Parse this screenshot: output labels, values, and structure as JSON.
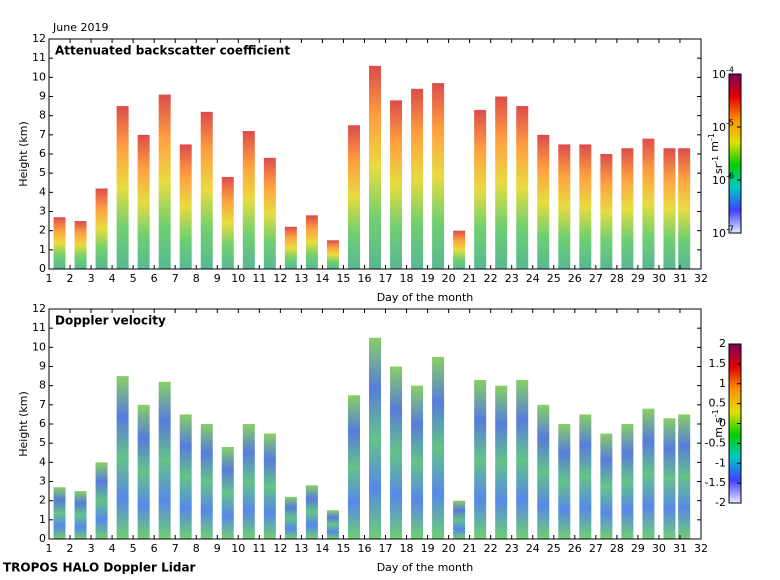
{
  "header": {
    "date": "June 2019",
    "footer": "TROPOS HALO Doppler Lidar"
  },
  "chart_data": [
    {
      "type": "bar",
      "title": "Attenuated backscatter coefficient",
      "ylabel": "Height (km)",
      "xlabel": "Day of the month",
      "x": [
        1.5,
        2.5,
        3.5,
        4.5,
        5.5,
        6.5,
        7.5,
        8.5,
        9.5,
        10.5,
        11.5,
        12.5,
        13.5,
        14.5,
        15.5,
        16.5,
        17.5,
        18.5,
        19.5,
        20.5,
        21.5,
        22.5,
        23.5,
        24.5,
        25.5,
        26.5,
        27.5,
        28.5,
        29.5,
        30.5,
        31.2
      ],
      "values": [
        2.7,
        2.5,
        4.2,
        8.5,
        7.0,
        9.1,
        6.5,
        8.2,
        4.8,
        7.2,
        5.8,
        2.2,
        2.8,
        1.5,
        7.5,
        10.6,
        8.8,
        9.4,
        9.7,
        2.0,
        8.3,
        9.0,
        8.5,
        7.0,
        6.5,
        6.5,
        6.0,
        6.3,
        6.8,
        6.3,
        6.3
      ],
      "xlim": [
        1,
        32
      ],
      "xticks": [
        1,
        2,
        3,
        4,
        5,
        6,
        7,
        8,
        9,
        10,
        11,
        12,
        13,
        14,
        15,
        16,
        17,
        18,
        19,
        20,
        21,
        22,
        23,
        24,
        25,
        26,
        27,
        28,
        29,
        30,
        31,
        32
      ],
      "ylim": [
        0,
        12
      ],
      "yticks": [
        0,
        1,
        2,
        3,
        4,
        5,
        6,
        7,
        8,
        9,
        10,
        11,
        12
      ],
      "colormap": [
        "#e8e8ff",
        "#4040ff",
        "#00c8c8",
        "#00d000",
        "#e0e000",
        "#ff9000",
        "#e00000",
        "#800060"
      ],
      "profile_colors": [
        "#20a070",
        "#40c040",
        "#e0d000",
        "#ff8000",
        "#d01010"
      ],
      "colorbar": {
        "scale": "log",
        "lim": [
          1e-07,
          0.0001
        ],
        "ticks": [
          {
            "value": 1e-07,
            "label": "10",
            "exponent": "-7"
          },
          {
            "value": 1e-06,
            "label": "10",
            "exponent": "-6"
          },
          {
            "value": 1e-05,
            "label": "10",
            "exponent": "-5"
          },
          {
            "value": 0.0001,
            "label": "10",
            "exponent": "-4"
          }
        ],
        "units": [
          {
            "base": "sr",
            "exponent": "-1"
          },
          {
            "base": "m",
            "exponent": "-1"
          }
        ]
      }
    },
    {
      "type": "bar",
      "title": "Doppler velocity",
      "ylabel": "Height (km)",
      "xlabel": "Day of the month",
      "x": [
        1.5,
        2.5,
        3.5,
        4.5,
        5.5,
        6.5,
        7.5,
        8.5,
        9.5,
        10.5,
        11.5,
        12.5,
        13.5,
        14.5,
        15.5,
        16.5,
        17.5,
        18.5,
        19.5,
        20.5,
        21.5,
        22.5,
        23.5,
        24.5,
        25.5,
        26.5,
        27.5,
        28.5,
        29.5,
        30.5,
        31.2
      ],
      "values": [
        2.7,
        2.5,
        4.0,
        8.5,
        7.0,
        8.2,
        6.5,
        6.0,
        4.8,
        6.0,
        5.5,
        2.2,
        2.8,
        1.5,
        7.5,
        10.5,
        9.0,
        8.0,
        9.5,
        2.0,
        8.3,
        8.0,
        8.3,
        7.0,
        6.0,
        6.5,
        5.5,
        6.0,
        6.8,
        6.3,
        6.5
      ],
      "xlim": [
        1,
        32
      ],
      "xticks": [
        1,
        2,
        3,
        4,
        5,
        6,
        7,
        8,
        9,
        10,
        11,
        12,
        13,
        14,
        15,
        16,
        17,
        18,
        19,
        20,
        21,
        22,
        23,
        24,
        25,
        26,
        27,
        28,
        29,
        30,
        31,
        32
      ],
      "ylim": [
        0,
        12
      ],
      "yticks": [
        0,
        1,
        2,
        3,
        4,
        5,
        6,
        7,
        8,
        9,
        10,
        11,
        12
      ],
      "colormap": [
        "#e8e8ff",
        "#4040ff",
        "#00c8c8",
        "#00d000",
        "#e0e000",
        "#ff9000",
        "#e00000",
        "#800060"
      ],
      "profile_colors": [
        "#40c040",
        "#2060e0",
        "#30b060",
        "#2050d0",
        "#60c030"
      ],
      "colorbar": {
        "scale": "linear",
        "lim": [
          -2,
          2
        ],
        "ticks": [
          -2,
          -1.5,
          -1,
          -0.5,
          0,
          0.5,
          1,
          1.5,
          2
        ],
        "units": [
          {
            "base": "m",
            "exponent": ""
          },
          {
            "base": "s",
            "exponent": "-1"
          }
        ]
      }
    }
  ]
}
